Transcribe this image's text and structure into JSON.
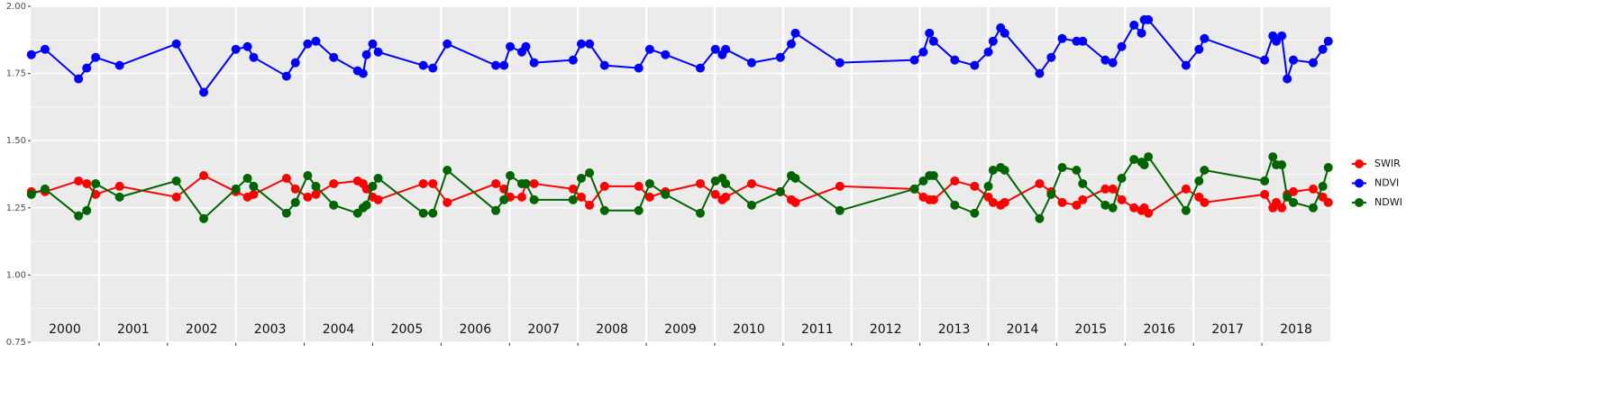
{
  "chart_data": {
    "type": "line",
    "x": [
      2000.01,
      2000.21,
      2000.7,
      2000.82,
      2000.95,
      2001.3,
      2002.13,
      2002.53,
      2003.0,
      2003.17,
      2003.26,
      2003.74,
      2003.87,
      2004.05,
      2004.17,
      2004.43,
      2004.78,
      2004.86,
      2004.91,
      2005.0,
      2005.08,
      2005.74,
      2005.88,
      2006.09,
      2006.8,
      2006.92,
      2007.01,
      2007.18,
      2007.24,
      2007.36,
      2007.93,
      2008.05,
      2008.17,
      2008.39,
      2008.89,
      2009.05,
      2009.28,
      2009.79,
      2010.01,
      2010.11,
      2010.16,
      2010.54,
      2010.96,
      2011.12,
      2011.18,
      2011.83,
      2012.92,
      2013.05,
      2013.14,
      2013.2,
      2013.51,
      2013.8,
      2014.0,
      2014.07,
      2014.18,
      2014.24,
      2014.75,
      2014.92,
      2015.08,
      2015.29,
      2015.38,
      2015.71,
      2015.82,
      2015.95,
      2016.13,
      2016.24,
      2016.28,
      2016.34,
      2016.89,
      2017.08,
      2017.16,
      2018.04,
      2018.16,
      2018.21,
      2018.29,
      2018.37,
      2018.46,
      2018.75,
      2018.89,
      2018.97
    ],
    "series": [
      {
        "name": "SWIR",
        "color": "#ff0000",
        "values": [
          1.31,
          1.31,
          1.35,
          1.34,
          1.3,
          1.33,
          1.29,
          1.37,
          1.31,
          1.29,
          1.3,
          1.36,
          1.32,
          1.29,
          1.3,
          1.34,
          1.35,
          1.34,
          1.32,
          1.29,
          1.28,
          1.34,
          1.34,
          1.27,
          1.34,
          1.32,
          1.29,
          1.29,
          1.34,
          1.34,
          1.32,
          1.29,
          1.26,
          1.33,
          1.33,
          1.29,
          1.31,
          1.34,
          1.3,
          1.28,
          1.29,
          1.34,
          1.31,
          1.28,
          1.27,
          1.33,
          1.32,
          1.29,
          1.28,
          1.28,
          1.35,
          1.33,
          1.29,
          1.27,
          1.26,
          1.27,
          1.34,
          1.31,
          1.27,
          1.26,
          1.28,
          1.32,
          1.32,
          1.28,
          1.25,
          1.24,
          1.25,
          1.23,
          1.32,
          1.29,
          1.27,
          1.3,
          1.25,
          1.27,
          1.25,
          1.3,
          1.31,
          1.32,
          1.29,
          1.27
        ]
      },
      {
        "name": "NDVI",
        "color": "#0000ff",
        "values": [
          1.82,
          1.84,
          1.73,
          1.77,
          1.81,
          1.78,
          1.86,
          1.68,
          1.84,
          1.85,
          1.81,
          1.74,
          1.79,
          1.86,
          1.87,
          1.81,
          1.76,
          1.75,
          1.82,
          1.86,
          1.83,
          1.78,
          1.77,
          1.86,
          1.78,
          1.78,
          1.85,
          1.83,
          1.85,
          1.79,
          1.8,
          1.86,
          1.86,
          1.78,
          1.77,
          1.84,
          1.82,
          1.77,
          1.84,
          1.82,
          1.84,
          1.79,
          1.81,
          1.86,
          1.9,
          1.79,
          1.8,
          1.83,
          1.9,
          1.87,
          1.8,
          1.78,
          1.83,
          1.87,
          1.92,
          1.9,
          1.75,
          1.81,
          1.88,
          1.87,
          1.87,
          1.8,
          1.79,
          1.85,
          1.93,
          1.9,
          1.95,
          1.95,
          1.78,
          1.84,
          1.88,
          1.8,
          1.89,
          1.87,
          1.89,
          1.73,
          1.8,
          1.79,
          1.84,
          1.87
        ]
      },
      {
        "name": "NDWI",
        "color": "#006400",
        "values": [
          1.3,
          1.32,
          1.22,
          1.24,
          1.34,
          1.29,
          1.35,
          1.21,
          1.32,
          1.36,
          1.33,
          1.23,
          1.27,
          1.37,
          1.33,
          1.26,
          1.23,
          1.25,
          1.26,
          1.33,
          1.36,
          1.23,
          1.23,
          1.39,
          1.24,
          1.28,
          1.37,
          1.34,
          1.34,
          1.28,
          1.28,
          1.36,
          1.38,
          1.24,
          1.24,
          1.34,
          1.3,
          1.23,
          1.35,
          1.36,
          1.34,
          1.26,
          1.31,
          1.37,
          1.36,
          1.24,
          1.32,
          1.35,
          1.37,
          1.37,
          1.26,
          1.23,
          1.33,
          1.39,
          1.4,
          1.39,
          1.21,
          1.3,
          1.4,
          1.39,
          1.34,
          1.26,
          1.25,
          1.36,
          1.43,
          1.42,
          1.41,
          1.44,
          1.24,
          1.35,
          1.39,
          1.35,
          1.44,
          1.41,
          1.41,
          1.29,
          1.27,
          1.25,
          1.33,
          1.4
        ]
      }
    ],
    "xlim": [
      2000,
      2019
    ],
    "xticks": [
      {
        "value": 2000.5,
        "label": "2000"
      },
      {
        "value": 2001.5,
        "label": "2001"
      },
      {
        "value": 2002.5,
        "label": "2002"
      },
      {
        "value": 2003.5,
        "label": "2003"
      },
      {
        "value": 2004.5,
        "label": "2004"
      },
      {
        "value": 2005.5,
        "label": "2005"
      },
      {
        "value": 2006.5,
        "label": "2006"
      },
      {
        "value": 2007.5,
        "label": "2007"
      },
      {
        "value": 2008.5,
        "label": "2008"
      },
      {
        "value": 2009.5,
        "label": "2009"
      },
      {
        "value": 2010.5,
        "label": "2010"
      },
      {
        "value": 2011.5,
        "label": "2011"
      },
      {
        "value": 2012.5,
        "label": "2012"
      },
      {
        "value": 2013.5,
        "label": "2013"
      },
      {
        "value": 2014.5,
        "label": "2014"
      },
      {
        "value": 2015.5,
        "label": "2015"
      },
      {
        "value": 2016.5,
        "label": "2016"
      },
      {
        "value": 2017.5,
        "label": "2017"
      },
      {
        "value": 2018.5,
        "label": "2018"
      }
    ],
    "xgrid": [
      2001,
      2002,
      2003,
      2004,
      2005,
      2006,
      2007,
      2008,
      2009,
      2010,
      2011,
      2012,
      2013,
      2014,
      2015,
      2016,
      2017,
      2018
    ],
    "ylim": [
      0.75,
      2.0
    ],
    "yticks": [
      {
        "value": 0.75,
        "label": "0.75"
      },
      {
        "value": 1.0,
        "label": "1.00"
      },
      {
        "value": 1.25,
        "label": "1.25"
      },
      {
        "value": 1.5,
        "label": "1.50"
      },
      {
        "value": 1.75,
        "label": "1.75"
      },
      {
        "value": 2.0,
        "label": "2.00"
      }
    ],
    "yminor": [
      0.875,
      1.125,
      1.375,
      1.625,
      1.875
    ],
    "grid": true,
    "legend": "right"
  }
}
